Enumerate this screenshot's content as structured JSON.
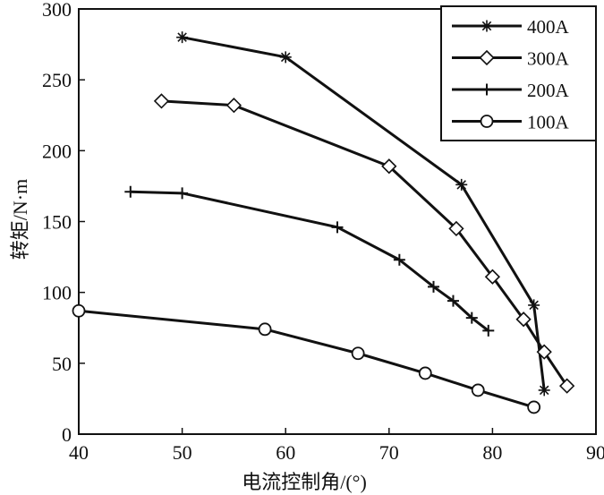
{
  "chart_data": {
    "type": "line",
    "title": "",
    "xlabel": "电流控制角/(°)",
    "ylabel": "转矩/N·m",
    "xlim": [
      40,
      90
    ],
    "ylim": [
      0,
      300
    ],
    "xticks": [
      "40",
      "50",
      "60",
      "70",
      "80",
      "90"
    ],
    "yticks": [
      "0",
      "50",
      "100",
      "150",
      "200",
      "250",
      "300"
    ],
    "grid": false,
    "legend_position": "top-right",
    "series": [
      {
        "name": "400A",
        "marker": "asterisk",
        "x": [
          50,
          60,
          77,
          84,
          85
        ],
        "y": [
          280,
          266,
          176,
          91,
          31
        ]
      },
      {
        "name": "300A",
        "marker": "diamond",
        "x": [
          48,
          55,
          70,
          76.5,
          80,
          83,
          85,
          87.2
        ],
        "y": [
          235,
          232,
          189,
          145,
          111,
          81,
          58,
          34
        ]
      },
      {
        "name": "200A",
        "marker": "plus",
        "x": [
          45,
          50,
          65,
          71,
          74.3,
          76.2,
          78,
          79.6
        ],
        "y": [
          171,
          170,
          146,
          123,
          104,
          94,
          82,
          73
        ]
      },
      {
        "name": "100A",
        "marker": "circle",
        "x": [
          40,
          58,
          67,
          73.5,
          78.6,
          84
        ],
        "y": [
          87,
          74,
          57,
          43,
          31,
          19
        ]
      }
    ]
  }
}
